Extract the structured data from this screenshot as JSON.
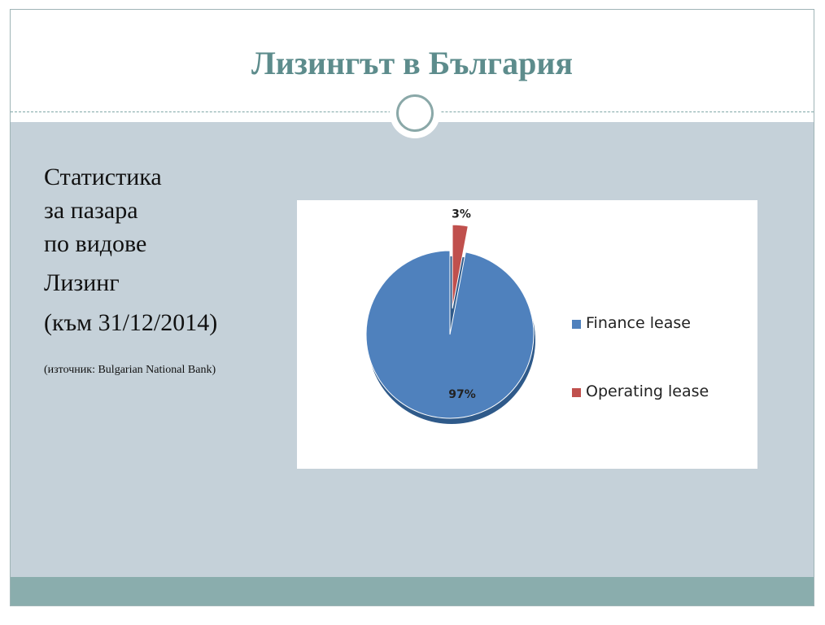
{
  "slide": {
    "title": "Лизингът в България",
    "heading_lines": [
      "Статистика",
      "за пазара",
      "по видове"
    ],
    "leasing_label": "Лизинг",
    "date_label": "(към 31/12/2014)",
    "source_label": "(източник: Bulgarian National Bank)"
  },
  "chart_data": {
    "type": "pie",
    "title": "",
    "slices": [
      {
        "name": "Finance lease",
        "value": 97,
        "label": "97%",
        "color": "#4f81bd"
      },
      {
        "name": "Operating lease",
        "value": 3,
        "label": "3%",
        "color": "#c0504d"
      }
    ],
    "legend_placement": "right",
    "exploded_slice": "Operating lease"
  }
}
